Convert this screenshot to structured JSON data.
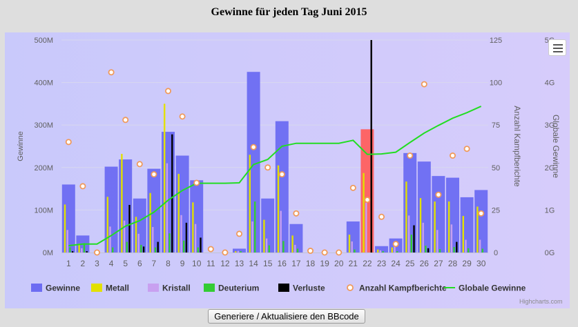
{
  "title": "Gewinne für jeden Tag Juni 2015",
  "button_label": "Generiere / Aktualisiere den BBcode",
  "credit": "Highcharts.com",
  "menu_icon": "hamburger-menu-icon",
  "chart_data": {
    "type": "bar",
    "categories": [
      "1",
      "2",
      "3",
      "4",
      "5",
      "6",
      "7",
      "8",
      "9",
      "10",
      "11",
      "12",
      "13",
      "14",
      "15",
      "16",
      "17",
      "18",
      "19",
      "20",
      "21",
      "22",
      "23",
      "24",
      "25",
      "26",
      "27",
      "28",
      "29",
      "30"
    ],
    "axes": {
      "left": {
        "label": "Gewinne",
        "ticks": [
          "0M",
          "100M",
          "200M",
          "300M",
          "400M",
          "500M"
        ],
        "range": [
          0,
          500
        ]
      },
      "right1": {
        "label": "Anzahl Kampfberichte",
        "ticks": [
          "0",
          "25",
          "50",
          "75",
          "100",
          "125"
        ],
        "range": [
          0,
          125
        ]
      },
      "right2": {
        "label": "Globale Gewinne",
        "ticks": [
          "0G",
          "1G",
          "2G",
          "3G",
          "4G",
          "5G"
        ],
        "range": [
          0,
          5
        ]
      }
    },
    "grid": true,
    "legend_position": "bottom",
    "series": [
      {
        "name": "Gewinne",
        "kind": "column",
        "axis": "left",
        "color": "#6c6cf2",
        "values": [
          160,
          40,
          0,
          202,
          219,
          127,
          197,
          284,
          228,
          170,
          0,
          0,
          9,
          425,
          127,
          309,
          67,
          0,
          0,
          0,
          73,
          290,
          15,
          33,
          234,
          214,
          180,
          176,
          130,
          147
        ]
      },
      {
        "name": "Metall",
        "kind": "column",
        "axis": "left",
        "color": "#e2e000",
        "values": [
          113,
          21,
          0,
          131,
          232,
          84,
          140,
          350,
          185,
          118,
          0,
          0,
          3,
          230,
          77,
          205,
          40,
          0,
          0,
          0,
          42,
          187,
          7,
          12,
          167,
          128,
          120,
          120,
          86,
          108
        ]
      },
      {
        "name": "Kristall",
        "kind": "column",
        "axis": "left",
        "color": "#c8a0f0",
        "values": [
          53,
          10,
          0,
          61,
          75,
          44,
          60,
          210,
          88,
          67,
          0,
          0,
          4,
          73,
          33,
          98,
          18,
          0,
          0,
          0,
          26,
          117,
          5,
          18,
          87,
          70,
          53,
          66,
          30,
          30
        ]
      },
      {
        "name": "Deuterium",
        "kind": "column",
        "axis": "left",
        "color": "#33cc33",
        "values": [
          12,
          22,
          0,
          12,
          25,
          18,
          12,
          45,
          28,
          12,
          0,
          0,
          3,
          120,
          17,
          27,
          9,
          0,
          0,
          0,
          7,
          0,
          3,
          3,
          42,
          16,
          8,
          13,
          10,
          9
        ]
      },
      {
        "name": "Verluste",
        "kind": "column",
        "axis": "left",
        "color": "#000000",
        "values": [
          3,
          3,
          0,
          0,
          112,
          14,
          25,
          278,
          70,
          35,
          0,
          0,
          0,
          0,
          0,
          0,
          0,
          0,
          0,
          0,
          0,
          500,
          0,
          0,
          64,
          10,
          0,
          25,
          0,
          0
        ]
      },
      {
        "name": "Anzahl Kampfberichte",
        "kind": "scatter",
        "axis": "right1",
        "color": "#f09a5a",
        "values": [
          65,
          39,
          0,
          106,
          78,
          52,
          46,
          95,
          80,
          41,
          2,
          0,
          11,
          62,
          50,
          46,
          23,
          1,
          0,
          0,
          38,
          31,
          21,
          5,
          57,
          99,
          34,
          57,
          61,
          23
        ]
      },
      {
        "name": "Globale Gewinne",
        "kind": "line",
        "axis": "right2",
        "color": "#22dd22",
        "values": [
          0.16,
          0.2,
          0.2,
          0.4,
          0.62,
          0.75,
          0.95,
          1.23,
          1.46,
          1.63,
          1.63,
          1.63,
          1.64,
          2.07,
          2.19,
          2.5,
          2.57,
          2.57,
          2.57,
          2.57,
          2.64,
          2.31,
          2.32,
          2.36,
          2.59,
          2.81,
          2.99,
          3.16,
          3.29,
          3.44
        ]
      }
    ],
    "highlighted": {
      "category": "22",
      "color": "#ff5f5f"
    }
  }
}
